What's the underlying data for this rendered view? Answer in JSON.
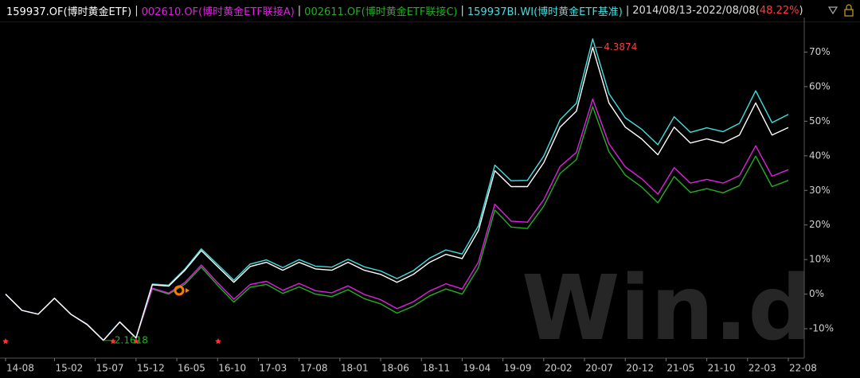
{
  "chart_data": {
    "type": "line",
    "separator": "|",
    "period": "2014/08/13-2022/08/08",
    "period_return": "48.22%",
    "period_return_color": "#ff3b3b",
    "brackets": [
      "(",
      ")"
    ],
    "watermark": "Win.d",
    "x": [
      "2014-08",
      "2014-10",
      "2014-12",
      "2015-02",
      "2015-04",
      "2015-06",
      "2015-08",
      "2015-10",
      "2015-12",
      "2016-02",
      "2016-04",
      "2016-06",
      "2016-08",
      "2016-10",
      "2016-12",
      "2017-02",
      "2017-04",
      "2017-06",
      "2017-08",
      "2017-10",
      "2017-12",
      "2018-02",
      "2018-04",
      "2018-06",
      "2018-08",
      "2018-10",
      "2018-12",
      "2019-02",
      "2019-04",
      "2019-06",
      "2019-08",
      "2019-10",
      "2019-12",
      "2020-02",
      "2020-04",
      "2020-06",
      "2020-08",
      "2020-10",
      "2020-12",
      "2021-02",
      "2021-04",
      "2021-06",
      "2021-08",
      "2021-10",
      "2021-12",
      "2022-02",
      "2022-04",
      "2022-06",
      "2022-08"
    ],
    "series": [
      {
        "name": "159937.OF(博时黄金ETF)",
        "color": "#ffffff",
        "values": [
          0.0,
          -4.7,
          -5.8,
          -1.2,
          -5.8,
          -8.8,
          -13.4,
          -8.1,
          -12.7,
          2.7,
          2.3,
          6.9,
          12.6,
          8.0,
          3.4,
          8.0,
          9.2,
          6.9,
          9.2,
          7.3,
          6.9,
          9.2,
          6.9,
          5.7,
          3.4,
          5.7,
          9.2,
          11.5,
          10.3,
          18.4,
          35.7,
          31.1,
          31.1,
          38.0,
          48.3,
          52.9,
          71.4,
          55.3,
          48.3,
          44.9,
          40.3,
          48.3,
          43.7,
          44.9,
          43.7,
          46.0,
          55.3,
          46.0,
          48.2
        ]
      },
      {
        "name": "002610.OF(博时黄金ETF联接A)",
        "color": "#e020e0",
        "values": [
          0.0,
          -4.7,
          -5.8,
          -1.2,
          -5.8,
          -8.8,
          -13.4,
          -8.1,
          -12.7,
          1.7,
          0.3,
          3.4,
          8.4,
          3.3,
          -1.5,
          2.8,
          3.7,
          1.1,
          3.1,
          1.0,
          0.4,
          2.4,
          -0.1,
          -1.6,
          -4.2,
          -2.2,
          0.9,
          3.0,
          1.5,
          9.3,
          26.0,
          21.1,
          20.8,
          27.3,
          36.9,
          41.0,
          56.4,
          43.5,
          36.8,
          33.4,
          28.9,
          36.6,
          32.1,
          33.2,
          32.1,
          34.3,
          42.9,
          34.1,
          36.0
        ]
      },
      {
        "name": "002611.OF(博时黄金ETF联接C)",
        "color": "#22b022",
        "values": [
          0.0,
          -4.7,
          -5.8,
          -1.2,
          -5.8,
          -8.8,
          -13.4,
          -8.1,
          -12.7,
          1.5,
          0.0,
          2.9,
          7.8,
          2.6,
          -2.3,
          2.0,
          2.8,
          0.2,
          2.1,
          0.0,
          -0.7,
          1.3,
          -1.3,
          -2.8,
          -5.5,
          -3.5,
          -0.5,
          1.5,
          0.0,
          7.7,
          24.3,
          19.4,
          19.0,
          25.4,
          34.9,
          38.9,
          54.2,
          41.2,
          34.4,
          31.0,
          26.4,
          34.0,
          29.4,
          30.5,
          29.3,
          31.4,
          39.9,
          31.1,
          32.9
        ]
      },
      {
        "name": "159937BI.WI(博时黄金ETF基准)",
        "color": "#40e0e0",
        "values": [
          0.0,
          -4.7,
          -5.8,
          -1.2,
          -5.8,
          -8.7,
          -13.3,
          -8.0,
          -12.6,
          2.9,
          2.6,
          7.3,
          13.1,
          8.6,
          4.0,
          8.7,
          9.9,
          7.7,
          10.0,
          8.1,
          7.8,
          10.1,
          7.9,
          6.7,
          4.5,
          6.8,
          10.4,
          12.8,
          11.6,
          19.8,
          37.3,
          32.8,
          32.9,
          39.9,
          50.4,
          55.2,
          73.8,
          58.0,
          51.0,
          47.7,
          43.2,
          51.3,
          46.8,
          48.1,
          47.0,
          49.4,
          58.8,
          49.6,
          52.0
        ]
      }
    ],
    "annotations": [
      {
        "text": "4.3874",
        "x": "2020-08",
        "y": 71.4,
        "color": "#ff3b3b"
      },
      {
        "text": "2.1618",
        "x": "2015-08",
        "y": -13.4,
        "color": "#22b022"
      }
    ],
    "xlim": [
      "2014-08",
      "2022-08"
    ],
    "xticks": [
      {
        "value": "2014-08",
        "label": "14-08"
      },
      {
        "value": "2015-02",
        "label": "15-02"
      },
      {
        "value": "2015-07",
        "label": "15-07"
      },
      {
        "value": "2015-12",
        "label": "15-12"
      },
      {
        "value": "2016-05",
        "label": "16-05"
      },
      {
        "value": "2016-10",
        "label": "16-10"
      },
      {
        "value": "2017-03",
        "label": "17-03"
      },
      {
        "value": "2017-08",
        "label": "17-08"
      },
      {
        "value": "2018-01",
        "label": "18-01"
      },
      {
        "value": "2018-06",
        "label": "18-06"
      },
      {
        "value": "2018-11",
        "label": "18-11"
      },
      {
        "value": "2019-04",
        "label": "19-04"
      },
      {
        "value": "2019-09",
        "label": "19-09"
      },
      {
        "value": "2020-02",
        "label": "20-02"
      },
      {
        "value": "2020-07",
        "label": "20-07"
      },
      {
        "value": "2020-12",
        "label": "20-12"
      },
      {
        "value": "2021-05",
        "label": "21-05"
      },
      {
        "value": "2021-10",
        "label": "21-10"
      },
      {
        "value": "2022-03",
        "label": "22-03"
      },
      {
        "value": "2022-08",
        "label": "22-08"
      }
    ],
    "ylim": [
      -18.5,
      80
    ],
    "yticks": [
      {
        "value": -10,
        "label": "-10%"
      },
      {
        "value": 0,
        "label": "0%"
      },
      {
        "value": 10,
        "label": "10%"
      },
      {
        "value": 20,
        "label": "20%"
      },
      {
        "value": 30,
        "label": "30%"
      },
      {
        "value": 40,
        "label": "40%"
      },
      {
        "value": 50,
        "label": "50%"
      },
      {
        "value": 60,
        "label": "60%"
      },
      {
        "value": 70,
        "label": "70%"
      }
    ]
  }
}
